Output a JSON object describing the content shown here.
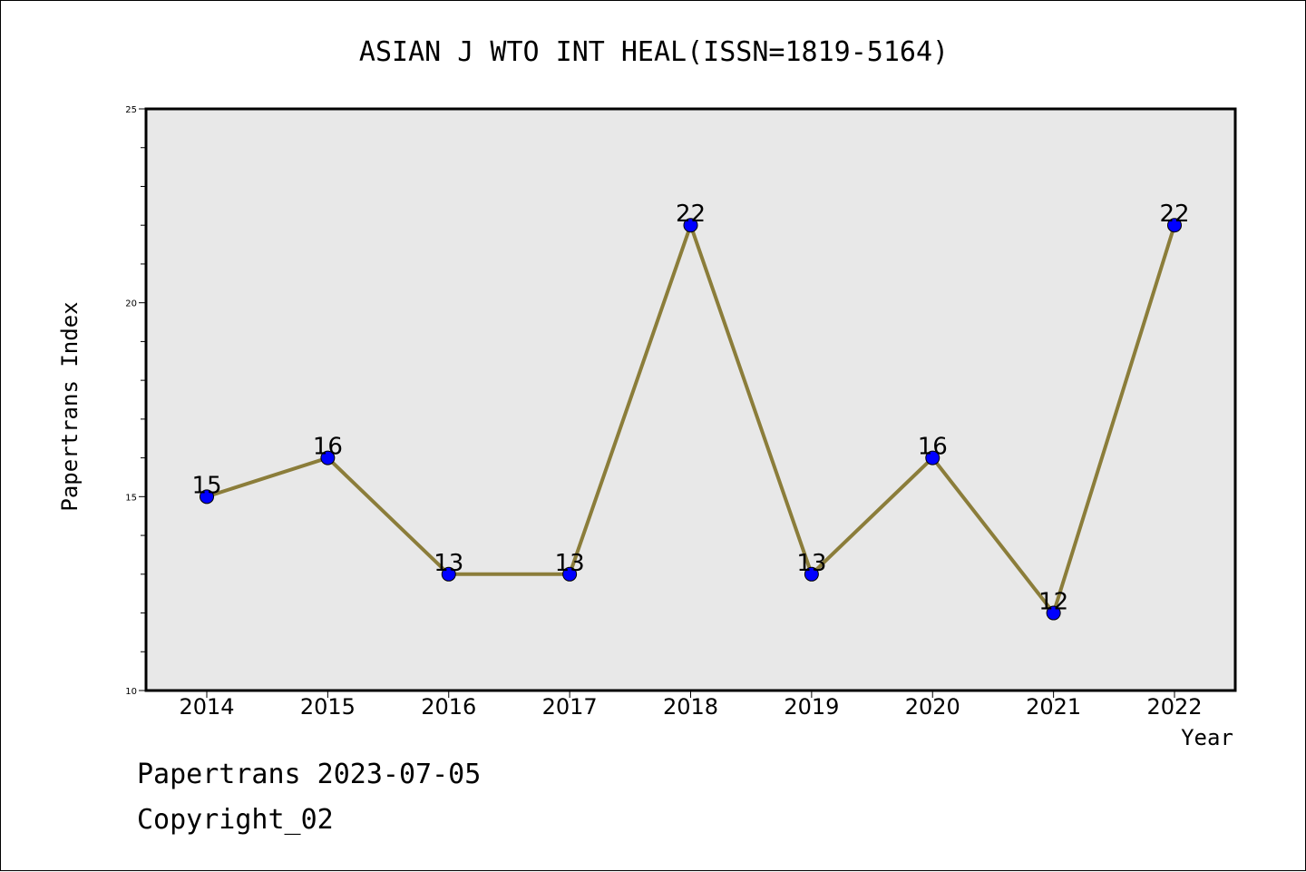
{
  "chart_data": {
    "type": "line",
    "title": "ASIAN J WTO INT HEAL(ISSN=1819-5164)",
    "xlabel": "Year",
    "ylabel": "Papertrans Index",
    "categories": [
      "2014",
      "2015",
      "2016",
      "2017",
      "2018",
      "2019",
      "2020",
      "2021",
      "2022"
    ],
    "series": [
      {
        "values": [
          15,
          16,
          13,
          13,
          22,
          13,
          16,
          12,
          22
        ]
      }
    ],
    "ylim": [
      10,
      25
    ],
    "yticks": [
      "10",
      "15",
      "20",
      "25"
    ],
    "grid": false,
    "colors": {
      "line": "#8B7D3A",
      "marker": "#0000FF",
      "plot_bg": "#E8E8E8"
    }
  },
  "footer": {
    "line1": "Papertrans 2023-07-05",
    "line2": "Copyright_02"
  }
}
